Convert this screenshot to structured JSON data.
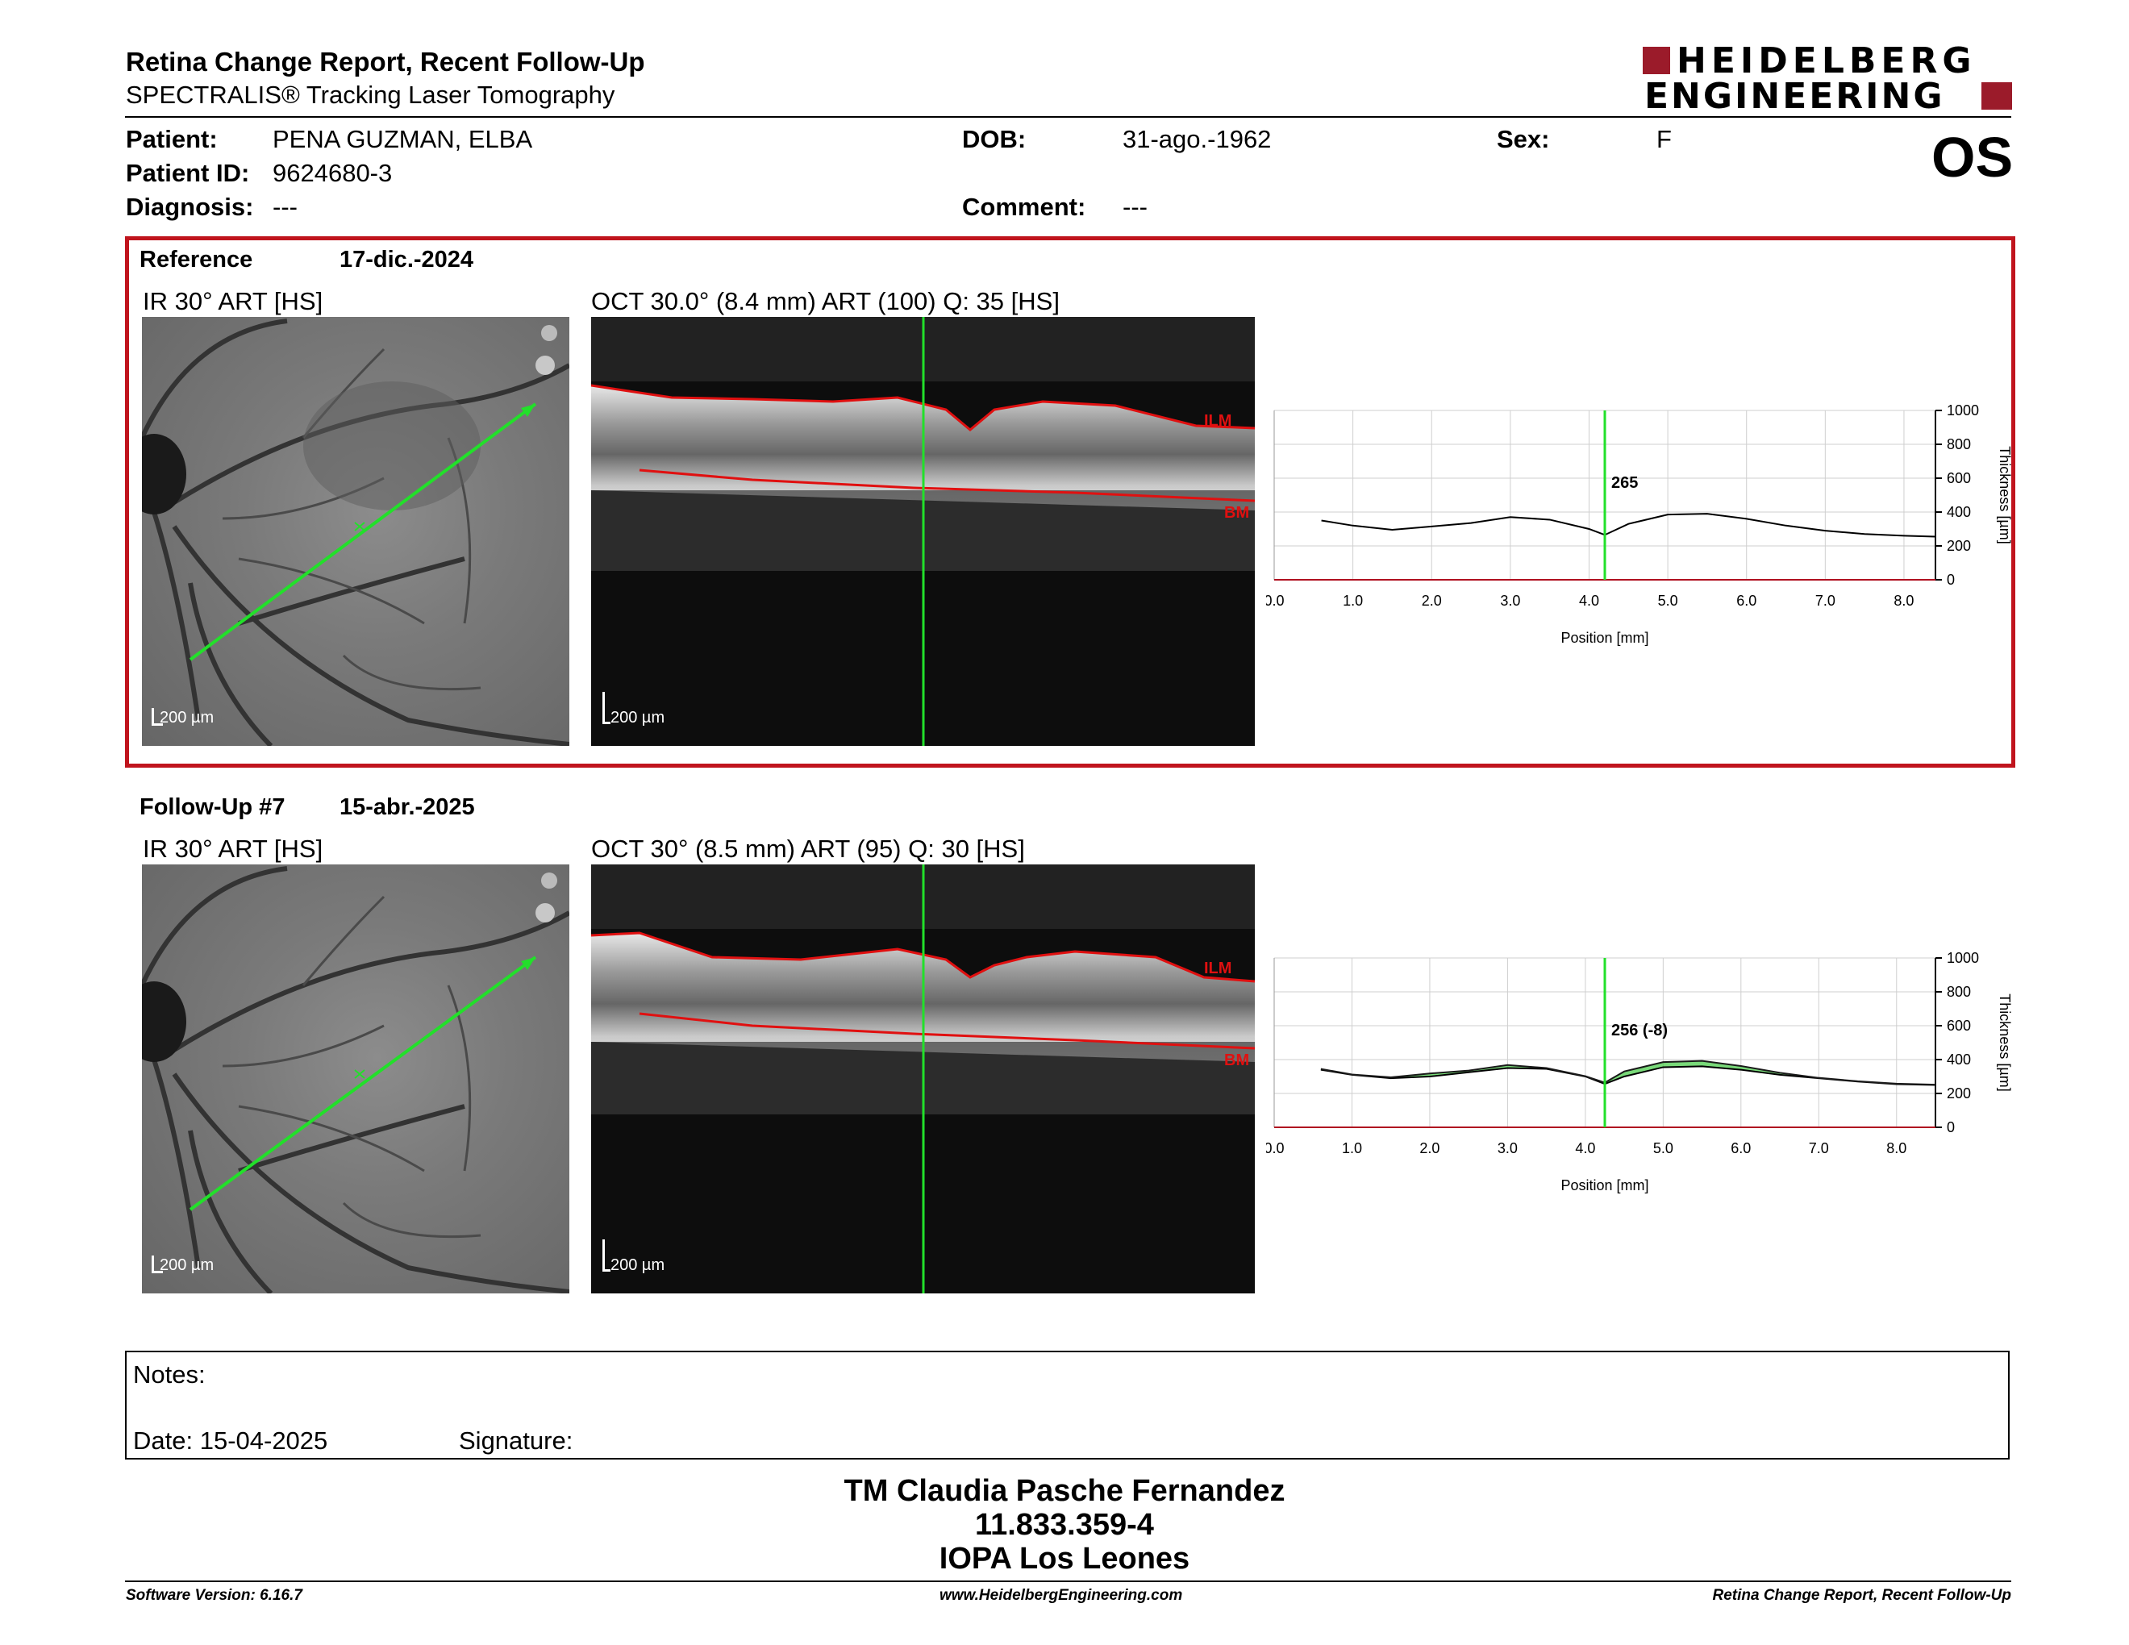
{
  "header": {
    "title": "Retina Change Report, Recent Follow-Up",
    "subtitle": "SPECTRALIS® Tracking Laser Tomography",
    "logo_line1": "HEIDELBERG",
    "logo_line2": "ENGINEERING",
    "brand_color": "#9b1b2a"
  },
  "patient": {
    "patient_label": "Patient:",
    "patient_value": "PENA GUZMAN, ELBA",
    "id_label": "Patient ID:",
    "id_value": "9624680-3",
    "diagnosis_label": "Diagnosis:",
    "diagnosis_value": "---",
    "dob_label": "DOB:",
    "dob_value": "31-ago.-1962",
    "comment_label": "Comment:",
    "comment_value": "---",
    "sex_label": "Sex:",
    "sex_value": "F",
    "eye": "OS"
  },
  "reference": {
    "label": "Reference",
    "date": "17-dic.-2024",
    "ir_label": "IR 30° ART [HS]",
    "oct_label": "OCT 30.0° (8.4 mm) ART (100) Q: 35 [HS]",
    "ir_scale": "200 µm",
    "oct_scale": "200 µm",
    "ilm": "ILM",
    "bm": "BM",
    "value_label": "265"
  },
  "followup": {
    "label": "Follow-Up #7",
    "date": "15-abr.-2025",
    "ir_label": "IR 30° ART [HS]",
    "oct_label": "OCT 30° (8.5 mm) ART (95) Q: 30 [HS]",
    "ir_scale": "200 µm",
    "oct_scale": "200 µm",
    "ilm": "ILM",
    "bm": "BM",
    "value_label": "256 (-8)"
  },
  "chart_data": [
    {
      "type": "line",
      "xlabel": "Position [mm]",
      "ylabel": "Thickness [µm]",
      "xlim": [
        0,
        8.4
      ],
      "ylim": [
        0,
        1000
      ],
      "xticks": [
        "0.0",
        "1.0",
        "2.0",
        "3.0",
        "4.0",
        "5.0",
        "6.0",
        "7.0",
        "8.0"
      ],
      "yticks": [
        "0",
        "200",
        "400",
        "600",
        "800",
        "1000"
      ],
      "grid": true,
      "cursor_x": 4.2,
      "cursor_label": "265",
      "series": [
        {
          "x": [
            0.6,
            1.0,
            1.5,
            2.0,
            2.5,
            3.0,
            3.5,
            4.0,
            4.2,
            4.5,
            5.0,
            5.5,
            6.0,
            6.5,
            7.0,
            7.5,
            8.0,
            8.4
          ],
          "values": [
            350,
            320,
            295,
            315,
            335,
            370,
            355,
            300,
            265,
            330,
            385,
            390,
            360,
            320,
            290,
            270,
            260,
            255
          ]
        }
      ]
    },
    {
      "type": "line",
      "xlabel": "Position [mm]",
      "ylabel": "Thickness [µm]",
      "xlim": [
        0,
        8.5
      ],
      "ylim": [
        0,
        1000
      ],
      "xticks": [
        "0.0",
        "1.0",
        "2.0",
        "3.0",
        "4.0",
        "5.0",
        "6.0",
        "7.0",
        "8.0"
      ],
      "yticks": [
        "0",
        "200",
        "400",
        "600",
        "800",
        "1000"
      ],
      "grid": true,
      "cursor_x": 4.25,
      "cursor_label": "256 (-8)",
      "series": [
        {
          "x": [
            0.6,
            1.0,
            1.5,
            2.0,
            2.5,
            3.0,
            3.5,
            4.0,
            4.25,
            4.5,
            5.0,
            5.5,
            6.0,
            6.5,
            7.0,
            7.5,
            8.0,
            8.5
          ],
          "values": [
            340,
            310,
            290,
            300,
            325,
            350,
            345,
            300,
            256,
            300,
            355,
            360,
            340,
            310,
            290,
            270,
            255,
            250
          ]
        },
        {
          "x": [
            0.6,
            1.0,
            1.5,
            2.0,
            2.5,
            3.0,
            3.5,
            4.0,
            4.25,
            4.5,
            5.0,
            5.5,
            6.0,
            6.5,
            7.0,
            7.5,
            8.0,
            8.5
          ],
          "values": [
            345,
            312,
            295,
            318,
            335,
            368,
            350,
            302,
            264,
            330,
            385,
            392,
            362,
            322,
            292,
            272,
            258,
            252
          ]
        }
      ]
    }
  ],
  "notes": {
    "label": "Notes:",
    "date": "Date: 15-04-2025",
    "signature": "Signature:"
  },
  "footer": {
    "name": "TM Claudia Pasche Fernandez",
    "id": "11.833.359-4",
    "place": "IOPA Los Leones",
    "software": "Software Version: 6.16.7",
    "website": "www.HeidelbergEngineering.com",
    "report": "Retina Change Report, Recent Follow-Up"
  }
}
